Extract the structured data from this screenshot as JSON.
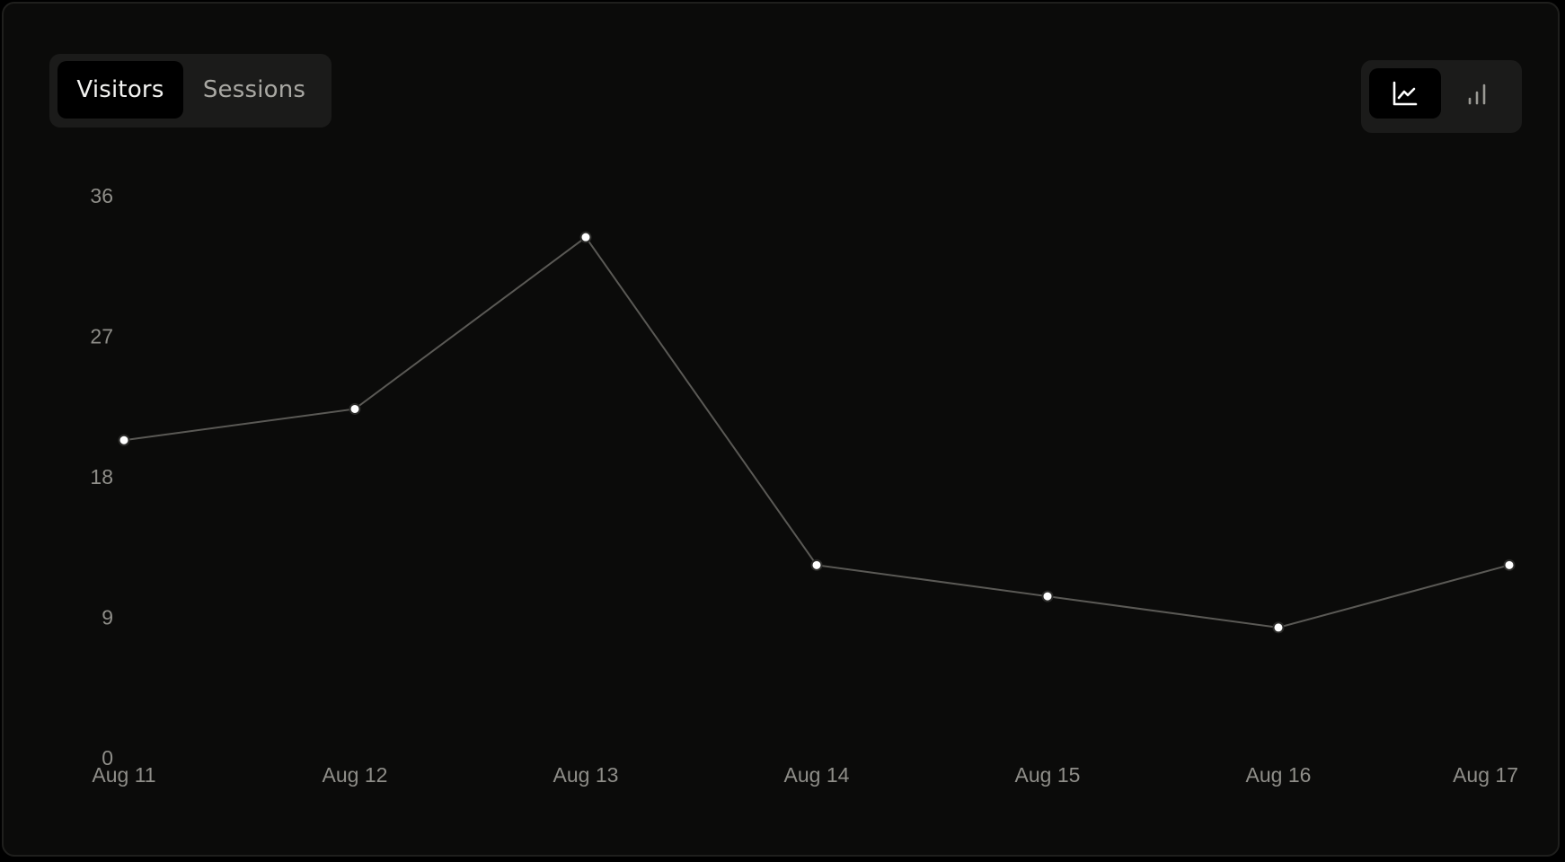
{
  "tabs": {
    "visitors_label": "Visitors",
    "sessions_label": "Sessions",
    "active": "Visitors"
  },
  "view_toggle": {
    "options": [
      "line-chart-icon",
      "bar-chart-icon"
    ],
    "active": "line-chart-icon"
  },
  "colors": {
    "background": "#0b0b0a",
    "line": "#5a5955",
    "point_fill": "#ffffff",
    "tick_text": "#8f8e89"
  },
  "chart_data": {
    "type": "line",
    "title": "",
    "xlabel": "",
    "ylabel": "",
    "categories": [
      "Aug 11",
      "Aug 12",
      "Aug 13",
      "Aug 14",
      "Aug 15",
      "Aug 16",
      "Aug 17"
    ],
    "series": [
      {
        "values": [
          20,
          22,
          33,
          12,
          10,
          8,
          12
        ]
      }
    ],
    "yticks": [
      "0",
      "9",
      "18",
      "27",
      "36"
    ],
    "ylim": [
      0,
      36
    ],
    "grid": false,
    "legend": "none"
  }
}
